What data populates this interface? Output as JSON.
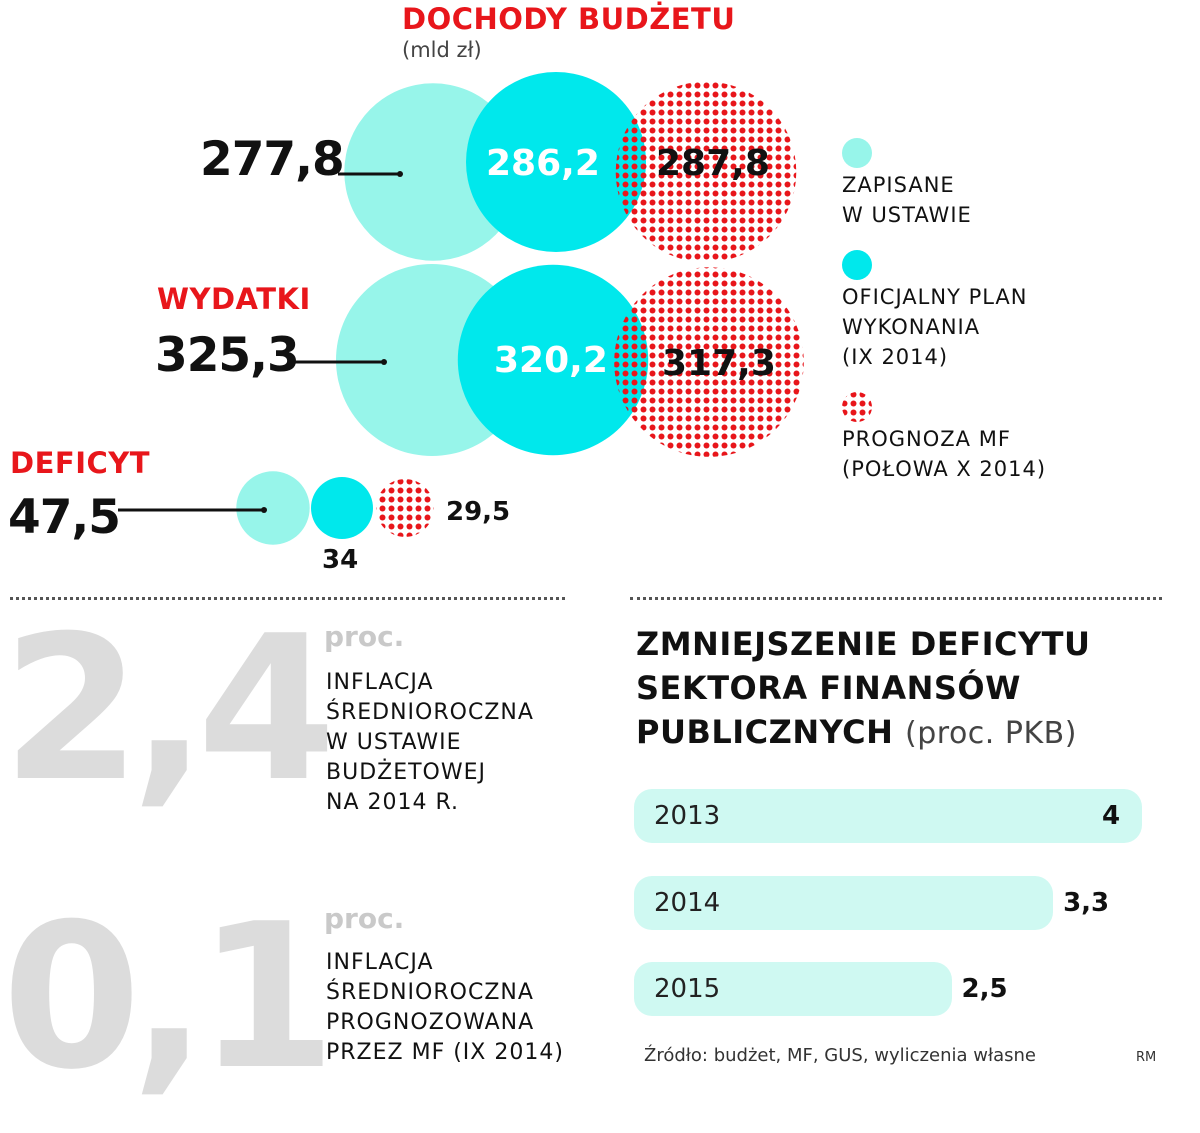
{
  "chart_data": [
    {
      "type": "bubble",
      "title": "DOCHODY BUDŻETU",
      "subtitle": "(mld zł)",
      "legend": [
        {
          "label": "ZAPISANE W USTAWIE",
          "color": "#97f5ea"
        },
        {
          "label": "OFICJALNY PLAN WYKONANIA (IX 2014)",
          "color": "#00e8ec"
        },
        {
          "label": "PROGNOZA MF (POŁOWA X 2014)",
          "color": "#e8161b",
          "pattern": "dotted"
        }
      ],
      "groups": [
        {
          "name": "DOCHODY BUDŻETU",
          "values": [
            277.8,
            286.2,
            287.8
          ],
          "labels": [
            "277,8",
            "286,2",
            "287,8"
          ]
        },
        {
          "name": "WYDATKI",
          "values": [
            325.3,
            320.2,
            317.3
          ],
          "labels": [
            "325,3",
            "320,2",
            "317,3"
          ]
        },
        {
          "name": "DEFICYT",
          "values": [
            47.5,
            34,
            29.5
          ],
          "labels": [
            "47,5",
            "34",
            "29,5"
          ]
        }
      ]
    },
    {
      "type": "bar",
      "title": "ZMNIEJSZENIE DEFICYTU SEKTORA FINANSÓW PUBLICZNYCH",
      "unit": "(proc. PKB)",
      "categories": [
        "2013",
        "2014",
        "2015"
      ],
      "values": [
        4,
        3.3,
        2.5
      ],
      "labels": [
        "4",
        "3,3",
        "2,5"
      ],
      "bar_color": "#cff9f2"
    }
  ],
  "group_titles": {
    "income": "DOCHODY BUDŻETU",
    "income_unit": "(mld zł)",
    "expenses": "WYDATKI",
    "deficit": "DEFICYT"
  },
  "inflation": [
    {
      "value": "2,4",
      "unit": "proc.",
      "lines": [
        "INFLACJA",
        "ŚREDNIOROCZNA",
        "W USTAWIE",
        "BUDŻETOWEJ",
        "NA 2014 R."
      ]
    },
    {
      "value": "0,1",
      "unit": "proc.",
      "lines": [
        "INFLACJA",
        "ŚREDNIOROCZNA",
        "PROGNOZOWANA",
        "PRZEZ MF (IX 2014)"
      ]
    }
  ],
  "deficit_heading": {
    "lines": [
      "ZMNIEJSZENIE DEFICYTU",
      "SEKTORA FINANSÓW"
    ],
    "last": "PUBLICZNYCH",
    "unit": "(proc. PKB)"
  },
  "source": "Źródło: budżet, MF, GUS, wyliczenia własne",
  "author": "RM",
  "colors": {
    "planned": "#97f5ea",
    "official": "#00e8ec",
    "forecast": "#e8161b",
    "bar": "#cff9f2",
    "gray_number": "#dcdcdc"
  }
}
